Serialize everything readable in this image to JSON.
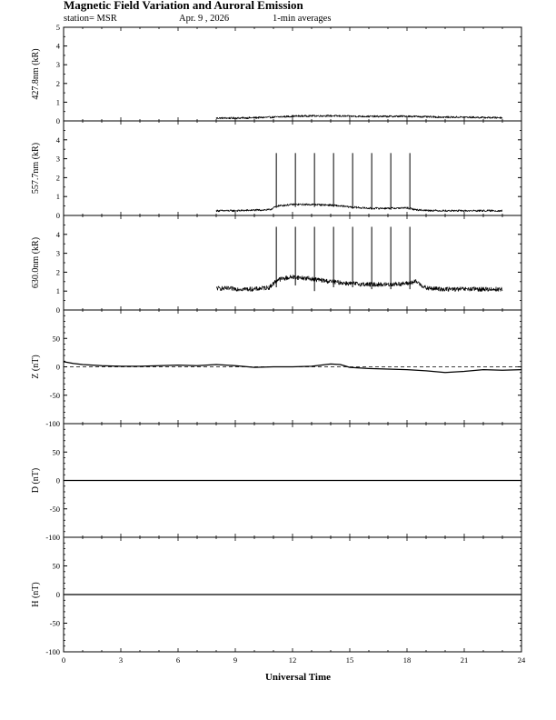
{
  "chart_data": {
    "type": "line",
    "title": "Magnetic Field Variation and Auroral Emission",
    "station": "station= MSR",
    "date": "Apr. 9  , 2026",
    "averaging": "1-min averages",
    "xlabel": "Universal Time",
    "xlim": [
      0,
      24
    ],
    "xticks": [
      0,
      3,
      6,
      9,
      12,
      15,
      18,
      21,
      24
    ],
    "panels": [
      {
        "id": "p4278",
        "ylabel": "427.8nm (kR)",
        "ylim": [
          0,
          5
        ],
        "yticks": [
          0,
          1,
          2,
          3,
          4,
          5
        ],
        "ytick_labels": [
          "0",
          "1",
          "2",
          "3",
          "4",
          "5"
        ],
        "series": [
          {
            "name": "427.8nm",
            "x": [
              8.0,
              9.0,
              10.0,
              11.0,
              12.0,
              13.0,
              14.0,
              15.0,
              16.0,
              17.0,
              18.0,
              19.0,
              20.0,
              21.0,
              22.0,
              23.0
            ],
            "y": [
              0.15,
              0.15,
              0.17,
              0.2,
              0.25,
              0.27,
              0.27,
              0.25,
              0.24,
              0.24,
              0.25,
              0.22,
              0.2,
              0.2,
              0.18,
              0.17
            ],
            "noise": 0.05,
            "spikes": []
          }
        ]
      },
      {
        "id": "p5577",
        "ylabel": "557.7nm (kR)",
        "ylim": [
          0,
          5
        ],
        "yticks": [
          0,
          1,
          2,
          3,
          4
        ],
        "ytick_labels": [
          "0",
          "1",
          "2",
          "3",
          "4"
        ],
        "series": [
          {
            "name": "557.7nm",
            "x": [
              8.0,
              9.0,
              10.0,
              10.8,
              11.2,
              12.0,
              13.0,
              14.0,
              15.0,
              16.0,
              17.0,
              18.0,
              18.5,
              19.0,
              20.0,
              21.0,
              22.0,
              23.0
            ],
            "y": [
              0.25,
              0.25,
              0.28,
              0.3,
              0.5,
              0.58,
              0.58,
              0.55,
              0.45,
              0.38,
              0.38,
              0.4,
              0.3,
              0.27,
              0.25,
              0.25,
              0.25,
              0.25
            ],
            "noise": 0.05,
            "spikes": [
              {
                "x": 11.15,
                "top": 3.3,
                "bottom": 0.4
              },
              {
                "x": 12.15,
                "top": 3.3,
                "bottom": 0.45
              },
              {
                "x": 13.15,
                "top": 3.3,
                "bottom": 0.45
              },
              {
                "x": 14.15,
                "top": 3.3,
                "bottom": 0.45
              },
              {
                "x": 15.15,
                "top": 3.3,
                "bottom": 0.35
              },
              {
                "x": 16.15,
                "top": 3.3,
                "bottom": 0.3
              },
              {
                "x": 17.15,
                "top": 3.3,
                "bottom": 0.3
              },
              {
                "x": 18.15,
                "top": 3.3,
                "bottom": 0.3
              }
            ]
          }
        ]
      },
      {
        "id": "p6300",
        "ylabel": "630.0nm (kR)",
        "ylim": [
          0,
          5
        ],
        "yticks": [
          0,
          1,
          2,
          3,
          4
        ],
        "ytick_labels": [
          "0",
          "1",
          "2",
          "3",
          "4"
        ],
        "series": [
          {
            "name": "630.0nm",
            "x": [
              8.0,
              9.0,
              10.0,
              10.8,
              11.2,
              12.0,
              13.0,
              14.0,
              15.0,
              16.0,
              17.0,
              18.0,
              18.5,
              19.0,
              20.0,
              21.0,
              22.0,
              23.0
            ],
            "y": [
              1.15,
              1.12,
              1.1,
              1.2,
              1.6,
              1.75,
              1.65,
              1.5,
              1.4,
              1.35,
              1.35,
              1.4,
              1.5,
              1.15,
              1.1,
              1.1,
              1.1,
              1.1
            ],
            "noise": 0.12,
            "spikes": [
              {
                "x": 11.15,
                "top": 4.4,
                "bottom": 1.2
              },
              {
                "x": 12.15,
                "top": 4.4,
                "bottom": 1.3
              },
              {
                "x": 13.15,
                "top": 4.4,
                "bottom": 1.0
              },
              {
                "x": 14.15,
                "top": 4.4,
                "bottom": 1.2
              },
              {
                "x": 15.15,
                "top": 4.4,
                "bottom": 1.2
              },
              {
                "x": 16.15,
                "top": 4.4,
                "bottom": 1.1
              },
              {
                "x": 17.15,
                "top": 4.4,
                "bottom": 1.1
              },
              {
                "x": 18.15,
                "top": 4.4,
                "bottom": 1.1
              }
            ]
          }
        ]
      },
      {
        "id": "pZ",
        "ylabel": "Z (nT)",
        "ylim": [
          -100,
          100
        ],
        "yticks": [
          -100,
          -50,
          0,
          50
        ],
        "ytick_labels": [
          "-100",
          "-50",
          "0",
          "50"
        ],
        "zero_line": true,
        "series": [
          {
            "name": "Z",
            "x": [
              0.0,
              0.5,
              1.0,
              2.0,
              3.0,
              4.0,
              5.0,
              6.0,
              7.0,
              8.0,
              9.0,
              10.0,
              11.0,
              12.0,
              13.0,
              14.0,
              14.5,
              15.0,
              16.0,
              17.0,
              18.0,
              19.0,
              20.0,
              21.0,
              22.0,
              23.0,
              24.0
            ],
            "y": [
              9,
              6,
              4,
              2,
              1,
              1,
              2,
              3,
              2,
              4,
              2,
              -1,
              0,
              0,
              1,
              5,
              4,
              -1,
              -3,
              -4,
              -5,
              -7,
              -10,
              -8,
              -5,
              -6,
              -5
            ],
            "noise": 0,
            "spikes": []
          }
        ]
      },
      {
        "id": "pD",
        "ylabel": "D (nT)",
        "ylim": [
          -100,
          100
        ],
        "yticks": [
          -100,
          -50,
          0,
          50
        ],
        "ytick_labels": [
          "-100",
          "-50",
          "0",
          "50"
        ],
        "zero_line": true,
        "series": [
          {
            "name": "D",
            "x": [
              0,
              24
            ],
            "y": [
              0,
              0
            ],
            "noise": 0,
            "spikes": []
          }
        ]
      },
      {
        "id": "pH",
        "ylabel": "H (nT)",
        "ylim": [
          -100,
          100
        ],
        "yticks": [
          -100,
          -50,
          0,
          50
        ],
        "ytick_labels": [
          "-100",
          "-50",
          "0",
          "50"
        ],
        "zero_line": true,
        "series": [
          {
            "name": "H",
            "x": [
              0,
              24
            ],
            "y": [
              0,
              0
            ],
            "noise": 0,
            "spikes": []
          }
        ]
      }
    ]
  }
}
